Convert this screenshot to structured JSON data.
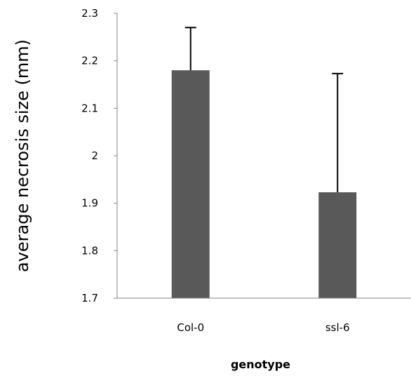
{
  "chart_data": {
    "type": "bar",
    "categories": [
      "Col-0",
      "ssl-6"
    ],
    "values": [
      2.18,
      1.923
    ],
    "error_plus": [
      0.09,
      0.25
    ],
    "xlabel": "genotype",
    "ylabel": "average necrosis size (mm)",
    "ylim": [
      1.7,
      2.3
    ],
    "yticks": [
      "1.7",
      "1.8",
      "1.9",
      "2",
      "2.1",
      "2.2",
      "2.3"
    ],
    "grid": false,
    "legend": "none",
    "bar_color": "#595959",
    "axis_color": "#868686",
    "error_color": "#000000"
  }
}
